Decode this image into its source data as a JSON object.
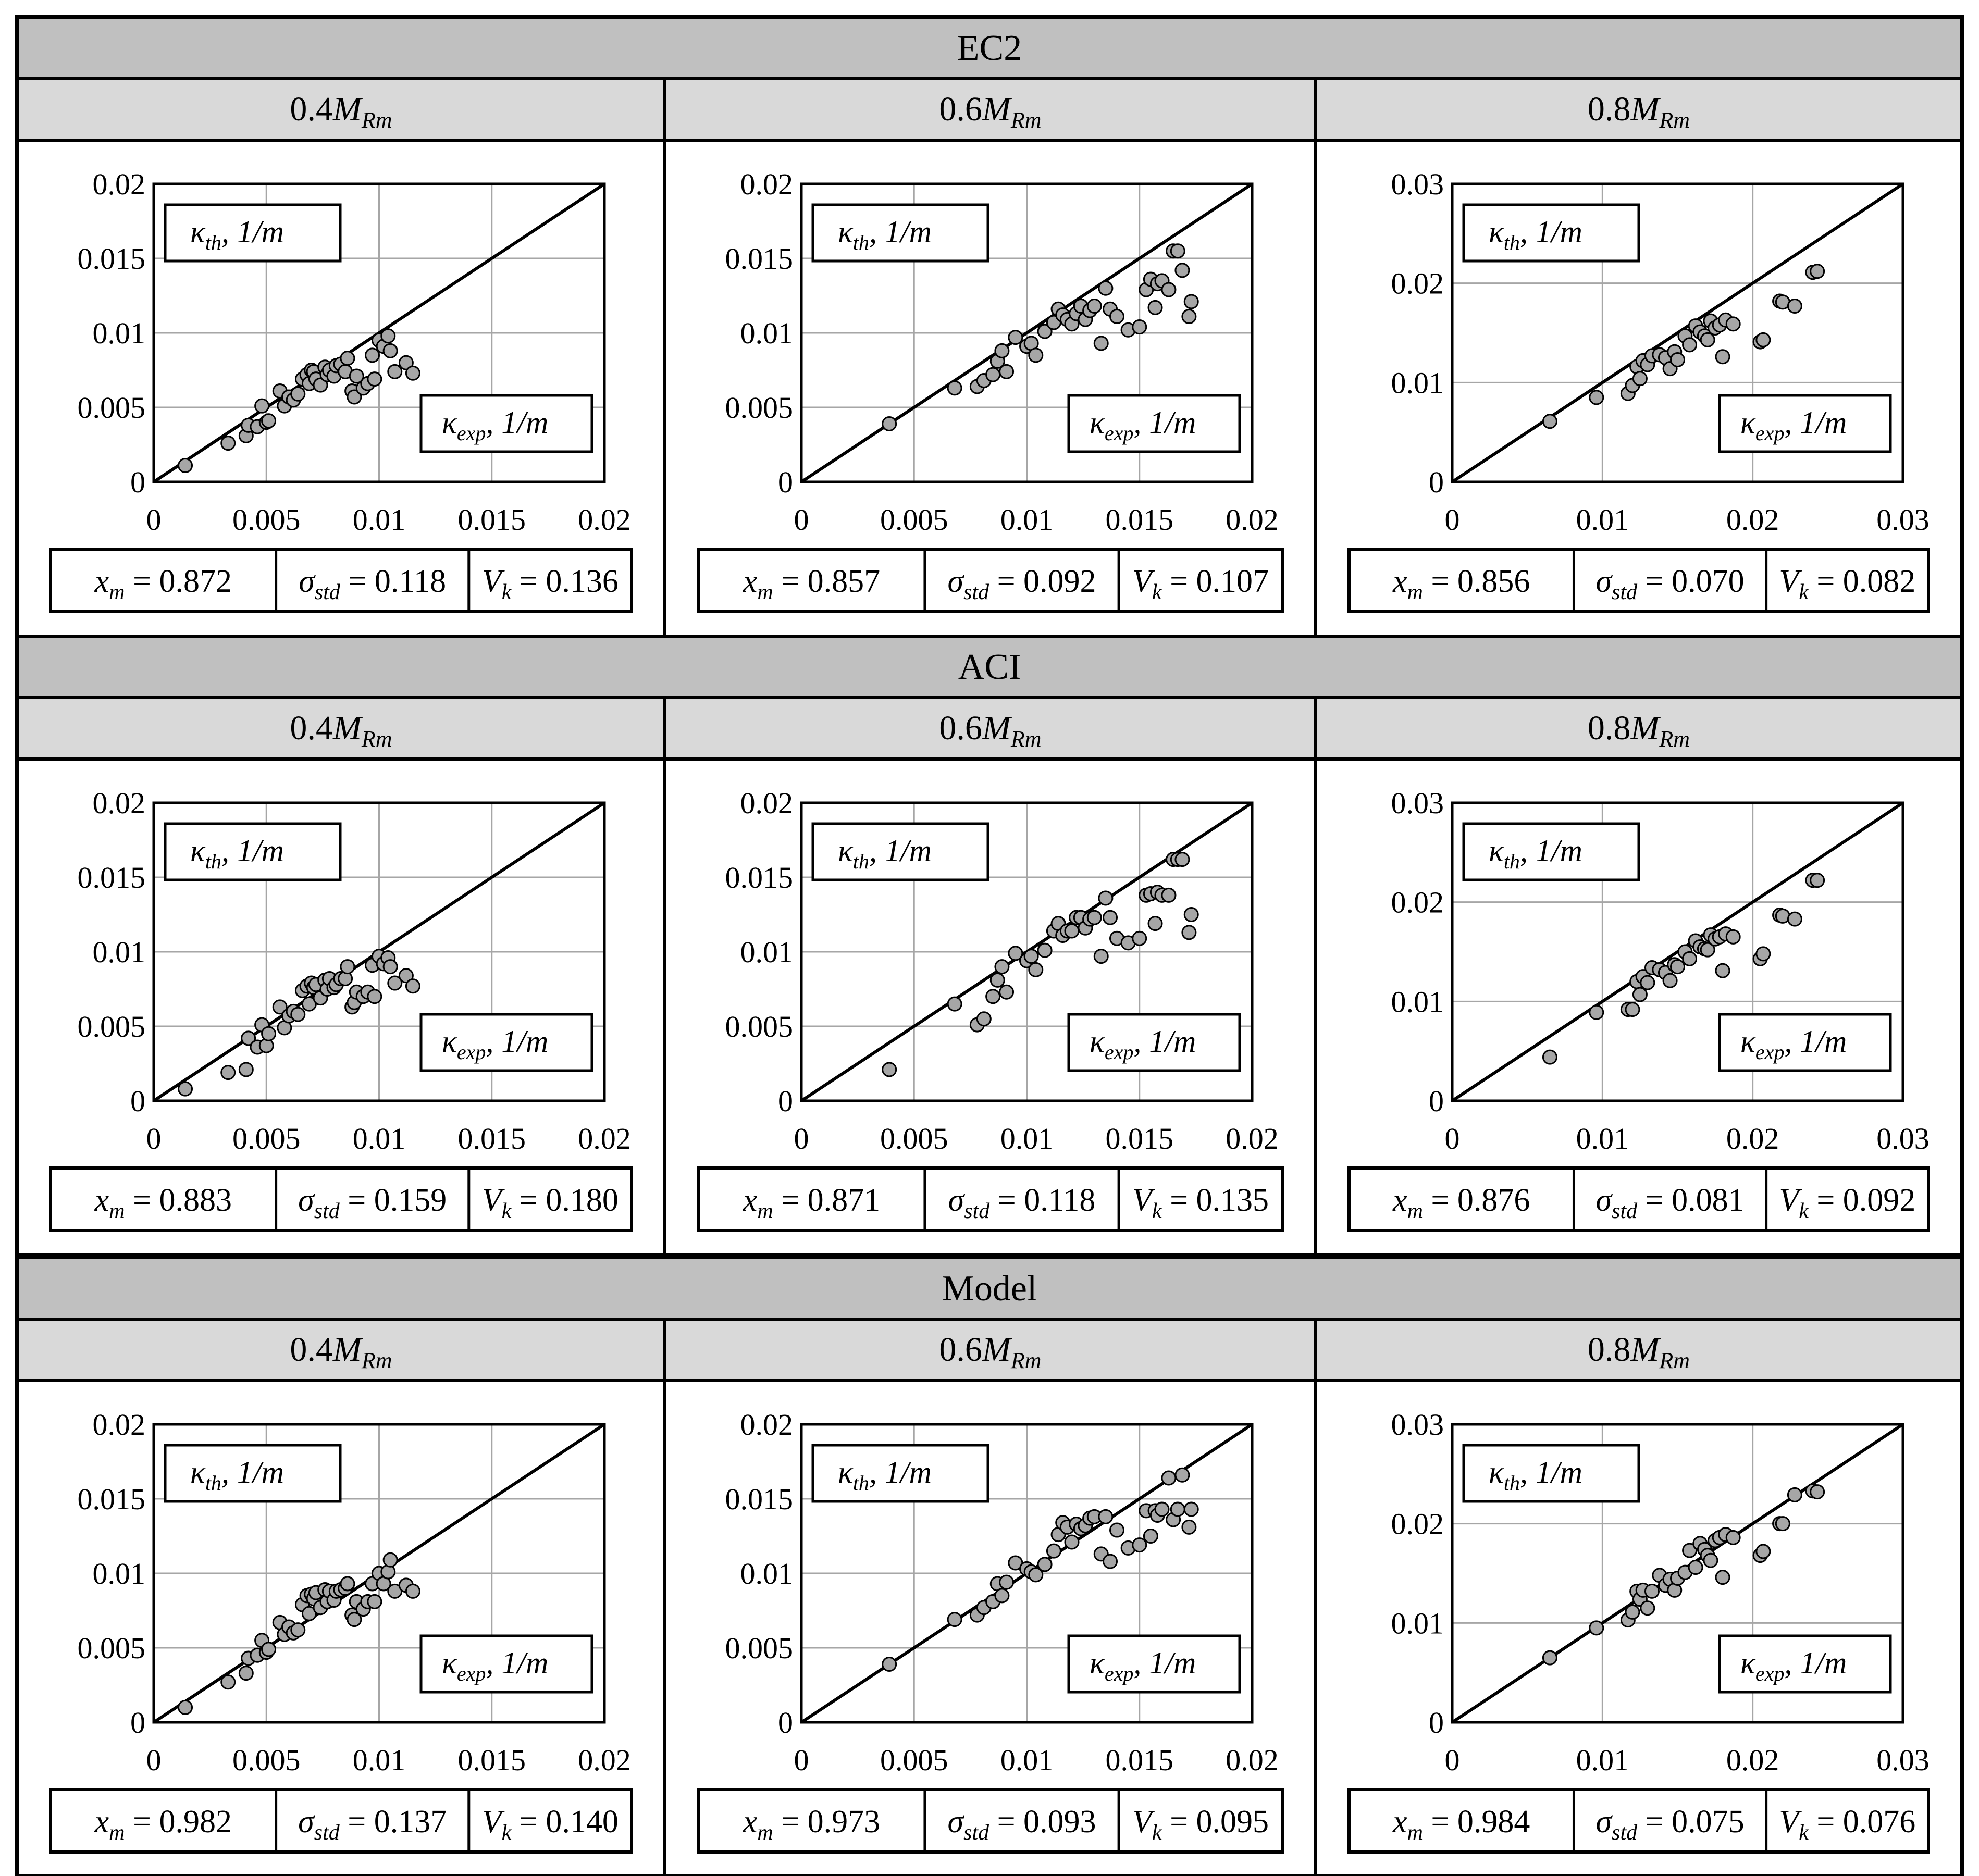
{
  "labels": {
    "y_axis": "κ",
    "y_sub": "th",
    "x_axis": "κ",
    "x_sub": "exp",
    "unit": ", 1/m"
  },
  "colors": {
    "section_header": "#c0c0c0",
    "column_header": "#d9d9d9",
    "marker": "#a6a6a6",
    "grid": "#a6a6a6"
  },
  "sections": [
    {
      "title": "EC2",
      "panels": [
        {
          "header_prefix": "0.4",
          "header_M": "M",
          "header_sub": "Rm",
          "xm": "x",
          "xm_sub": "m",
          "xm_val": " = 0.872",
          "sd": "σ",
          "sd_sub": "std",
          "sd_val": " = 0.118",
          "vk": "V",
          "vk_sub": "k",
          "vk_val": " = 0.136"
        },
        {
          "header_prefix": "0.6",
          "header_M": "M",
          "header_sub": "Rm",
          "xm": "x",
          "xm_sub": "m",
          "xm_val": " = 0.857",
          "sd": "σ",
          "sd_sub": "std",
          "sd_val": " = 0.092",
          "vk": "V",
          "vk_sub": "k",
          "vk_val": " = 0.107"
        },
        {
          "header_prefix": "0.8",
          "header_M": "M",
          "header_sub": "Rm",
          "xm": "x",
          "xm_sub": "m",
          "xm_val": " = 0.856",
          "sd": "σ",
          "sd_sub": "std",
          "sd_val": " = 0.070",
          "vk": "V",
          "vk_sub": "k",
          "vk_val": " = 0.082"
        }
      ]
    },
    {
      "title": "ACI",
      "panels": [
        {
          "header_prefix": "0.4",
          "header_M": "M",
          "header_sub": "Rm",
          "xm": "x",
          "xm_sub": "m",
          "xm_val": " = 0.883",
          "sd": "σ",
          "sd_sub": "std",
          "sd_val": " = 0.159",
          "vk": "V",
          "vk_sub": "k",
          "vk_val": " = 0.180"
        },
        {
          "header_prefix": "0.6",
          "header_M": "M",
          "header_sub": "Rm",
          "xm": "x",
          "xm_sub": "m",
          "xm_val": " = 0.871",
          "sd": "σ",
          "sd_sub": "std",
          "sd_val": " = 0.118",
          "vk": "V",
          "vk_sub": "k",
          "vk_val": " = 0.135"
        },
        {
          "header_prefix": "0.8",
          "header_M": "M",
          "header_sub": "Rm",
          "xm": "x",
          "xm_sub": "m",
          "xm_val": " = 0.876",
          "sd": "σ",
          "sd_sub": "std",
          "sd_val": " = 0.081",
          "vk": "V",
          "vk_sub": "k",
          "vk_val": " = 0.092"
        }
      ]
    },
    {
      "title": "Model",
      "panels": [
        {
          "header_prefix": "0.4",
          "header_M": "M",
          "header_sub": "Rm",
          "xm": "x",
          "xm_sub": "m",
          "xm_val": " = 0.982",
          "sd": "σ",
          "sd_sub": "std",
          "sd_val": " = 0.137",
          "vk": "V",
          "vk_sub": "k",
          "vk_val": " = 0.140"
        },
        {
          "header_prefix": "0.6",
          "header_M": "M",
          "header_sub": "Rm",
          "xm": "x",
          "xm_sub": "m",
          "xm_val": " = 0.973",
          "sd": "σ",
          "sd_sub": "std",
          "sd_val": " = 0.093",
          "vk": "V",
          "vk_sub": "k",
          "vk_val": " = 0.095"
        },
        {
          "header_prefix": "0.8",
          "header_M": "M",
          "header_sub": "Rm",
          "xm": "x",
          "xm_sub": "m",
          "xm_val": " = 0.984",
          "sd": "σ",
          "sd_sub": "std",
          "sd_val": " = 0.075",
          "vk": "V",
          "vk_sub": "k",
          "vk_val": " = 0.076"
        }
      ]
    }
  ],
  "chart_data": [
    {
      "type": "scatter",
      "row": 0,
      "col": 0,
      "xlim": [
        0,
        0.02
      ],
      "ylim": [
        0,
        0.02
      ],
      "ticks": [
        0,
        0.005,
        0.01,
        0.015,
        0.02
      ],
      "tick_labels": [
        "0",
        "0.005",
        "0.01",
        "0.015",
        "0.02"
      ],
      "reference_line": "y = x",
      "x": [
        0.0014,
        0.0033,
        0.0041,
        0.0042,
        0.0046,
        0.0048,
        0.005,
        0.0051,
        0.0056,
        0.0058,
        0.006,
        0.0062,
        0.0064,
        0.0066,
        0.0068,
        0.0069,
        0.007,
        0.0071,
        0.0072,
        0.0074,
        0.0076,
        0.0077,
        0.0078,
        0.008,
        0.0081,
        0.0083,
        0.0085,
        0.0086,
        0.0088,
        0.0089,
        0.009,
        0.0093,
        0.0095,
        0.0097,
        0.0098,
        0.01,
        0.0102,
        0.0104,
        0.0105,
        0.0107,
        0.0112,
        0.0115
      ],
      "y": [
        0.0011,
        0.0026,
        0.0031,
        0.0038,
        0.0037,
        0.0051,
        0.004,
        0.0041,
        0.0061,
        0.0051,
        0.0057,
        0.0055,
        0.0059,
        0.0069,
        0.0072,
        0.0066,
        0.0075,
        0.0074,
        0.0069,
        0.0065,
        0.0077,
        0.0072,
        0.0075,
        0.0071,
        0.0078,
        0.0079,
        0.0074,
        0.0083,
        0.0061,
        0.0057,
        0.0071,
        0.0063,
        0.0066,
        0.0085,
        0.0069,
        0.0095,
        0.0091,
        0.0098,
        0.0088,
        0.0074,
        0.008,
        0.0073
      ]
    },
    {
      "type": "scatter",
      "row": 0,
      "col": 1,
      "xlim": [
        0,
        0.02
      ],
      "ylim": [
        0,
        0.02
      ],
      "ticks": [
        0,
        0.005,
        0.01,
        0.015,
        0.02
      ],
      "tick_labels": [
        "0",
        "0.005",
        "0.01",
        "0.015",
        "0.02"
      ],
      "reference_line": "y = x",
      "x": [
        0.0039,
        0.0068,
        0.0078,
        0.0081,
        0.0085,
        0.0087,
        0.0089,
        0.0091,
        0.0095,
        0.01,
        0.0102,
        0.0104,
        0.0108,
        0.0112,
        0.0114,
        0.0116,
        0.0118,
        0.012,
        0.0122,
        0.0124,
        0.0126,
        0.0128,
        0.013,
        0.0133,
        0.0135,
        0.0137,
        0.014,
        0.0145,
        0.015,
        0.0153,
        0.0155,
        0.0157,
        0.0158,
        0.016,
        0.0163,
        0.0165,
        0.0167,
        0.0169,
        0.0172,
        0.0173
      ],
      "y": [
        0.0039,
        0.0063,
        0.0064,
        0.0068,
        0.0072,
        0.0081,
        0.0088,
        0.0074,
        0.0097,
        0.0091,
        0.0093,
        0.0085,
        0.0101,
        0.0107,
        0.0116,
        0.0112,
        0.0109,
        0.0106,
        0.0113,
        0.0118,
        0.0109,
        0.0115,
        0.0118,
        0.0093,
        0.013,
        0.0116,
        0.0111,
        0.0102,
        0.0104,
        0.0129,
        0.0136,
        0.0117,
        0.0133,
        0.0135,
        0.0129,
        0.0155,
        0.0155,
        0.0142,
        0.0111,
        0.0121
      ]
    },
    {
      "type": "scatter",
      "row": 0,
      "col": 2,
      "xlim": [
        0,
        0.03
      ],
      "ylim": [
        0,
        0.03
      ],
      "ticks": [
        0,
        0.01,
        0.02,
        0.03
      ],
      "tick_labels": [
        "0",
        "0.01",
        "0.02",
        "0.03"
      ],
      "reference_line": "y = x",
      "x": [
        0.0065,
        0.0096,
        0.0117,
        0.012,
        0.0123,
        0.0125,
        0.0127,
        0.013,
        0.0133,
        0.0138,
        0.0142,
        0.0145,
        0.0148,
        0.015,
        0.0155,
        0.0158,
        0.0162,
        0.0165,
        0.0168,
        0.017,
        0.0172,
        0.0175,
        0.0178,
        0.018,
        0.0182,
        0.0187,
        0.0205,
        0.0207,
        0.0218,
        0.022,
        0.0228,
        0.024,
        0.0243
      ],
      "y": [
        0.0061,
        0.0085,
        0.0089,
        0.0097,
        0.0116,
        0.0104,
        0.0122,
        0.0118,
        0.0127,
        0.0128,
        0.0125,
        0.0114,
        0.0131,
        0.0123,
        0.0147,
        0.0138,
        0.0157,
        0.0151,
        0.0147,
        0.0143,
        0.0162,
        0.0155,
        0.0158,
        0.0126,
        0.0163,
        0.0159,
        0.0141,
        0.0143,
        0.0182,
        0.0181,
        0.0177,
        0.0211,
        0.0212
      ]
    },
    {
      "type": "scatter",
      "row": 1,
      "col": 0,
      "xlim": [
        0,
        0.02
      ],
      "ylim": [
        0,
        0.02
      ],
      "ticks": [
        0,
        0.005,
        0.01,
        0.015,
        0.02
      ],
      "tick_labels": [
        "0",
        "0.005",
        "0.01",
        "0.015",
        "0.02"
      ],
      "reference_line": "y = x",
      "x": [
        0.0014,
        0.0033,
        0.0041,
        0.0042,
        0.0046,
        0.0048,
        0.005,
        0.0051,
        0.0056,
        0.0058,
        0.006,
        0.0062,
        0.0064,
        0.0066,
        0.0068,
        0.0069,
        0.007,
        0.0071,
        0.0072,
        0.0074,
        0.0076,
        0.0077,
        0.0078,
        0.008,
        0.0081,
        0.0083,
        0.0085,
        0.0086,
        0.0088,
        0.0089,
        0.009,
        0.0093,
        0.0095,
        0.0097,
        0.0098,
        0.01,
        0.0102,
        0.0104,
        0.0105,
        0.0107,
        0.0112,
        0.0115
      ],
      "y": [
        0.0008,
        0.0019,
        0.0021,
        0.0042,
        0.0036,
        0.0051,
        0.0037,
        0.0045,
        0.0063,
        0.0049,
        0.0057,
        0.006,
        0.0058,
        0.0074,
        0.0077,
        0.0065,
        0.0079,
        0.0076,
        0.0078,
        0.0069,
        0.0081,
        0.0075,
        0.0082,
        0.0076,
        0.0078,
        0.0082,
        0.0082,
        0.009,
        0.0063,
        0.0066,
        0.0073,
        0.007,
        0.0073,
        0.0091,
        0.007,
        0.0097,
        0.0092,
        0.0096,
        0.009,
        0.0079,
        0.0084,
        0.0077
      ]
    },
    {
      "type": "scatter",
      "row": 1,
      "col": 1,
      "xlim": [
        0,
        0.02
      ],
      "ylim": [
        0,
        0.02
      ],
      "ticks": [
        0,
        0.005,
        0.01,
        0.015,
        0.02
      ],
      "tick_labels": [
        "0",
        "0.005",
        "0.01",
        "0.015",
        "0.02"
      ],
      "reference_line": "y = x",
      "x": [
        0.0039,
        0.0068,
        0.0078,
        0.0081,
        0.0085,
        0.0087,
        0.0089,
        0.0091,
        0.0095,
        0.01,
        0.0102,
        0.0104,
        0.0108,
        0.0112,
        0.0114,
        0.0116,
        0.0118,
        0.012,
        0.0122,
        0.0124,
        0.0126,
        0.0128,
        0.013,
        0.0133,
        0.0135,
        0.0137,
        0.014,
        0.0145,
        0.015,
        0.0153,
        0.0155,
        0.0157,
        0.0158,
        0.016,
        0.0163,
        0.0165,
        0.0167,
        0.0169,
        0.0172,
        0.0173
      ],
      "y": [
        0.0021,
        0.0065,
        0.0051,
        0.0055,
        0.007,
        0.0081,
        0.009,
        0.0073,
        0.0099,
        0.0094,
        0.0097,
        0.0088,
        0.0101,
        0.0114,
        0.0119,
        0.0111,
        0.0114,
        0.0114,
        0.0123,
        0.0123,
        0.0116,
        0.0122,
        0.0123,
        0.0097,
        0.0136,
        0.0123,
        0.0109,
        0.0106,
        0.0109,
        0.0138,
        0.0139,
        0.0119,
        0.014,
        0.0138,
        0.0138,
        0.0162,
        0.0162,
        0.0162,
        0.0113,
        0.0125
      ]
    },
    {
      "type": "scatter",
      "row": 1,
      "col": 2,
      "xlim": [
        0,
        0.03
      ],
      "ylim": [
        0,
        0.03
      ],
      "ticks": [
        0,
        0.01,
        0.02,
        0.03
      ],
      "tick_labels": [
        "0",
        "0.01",
        "0.02",
        "0.03"
      ],
      "reference_line": "y = x",
      "x": [
        0.0065,
        0.0096,
        0.0117,
        0.012,
        0.0123,
        0.0125,
        0.0127,
        0.013,
        0.0133,
        0.0138,
        0.0142,
        0.0145,
        0.0148,
        0.015,
        0.0155,
        0.0158,
        0.0162,
        0.0165,
        0.0168,
        0.017,
        0.0172,
        0.0175,
        0.0178,
        0.018,
        0.0182,
        0.0187,
        0.0205,
        0.0207,
        0.0218,
        0.022,
        0.0228,
        0.024,
        0.0243
      ],
      "y": [
        0.0044,
        0.0089,
        0.0092,
        0.0092,
        0.012,
        0.0107,
        0.0125,
        0.0119,
        0.0134,
        0.0132,
        0.0129,
        0.0121,
        0.0137,
        0.0135,
        0.015,
        0.0143,
        0.0161,
        0.0155,
        0.0153,
        0.0152,
        0.0167,
        0.0163,
        0.0165,
        0.0131,
        0.0168,
        0.0165,
        0.0143,
        0.0148,
        0.0187,
        0.0186,
        0.0183,
        0.0222,
        0.0222
      ]
    },
    {
      "type": "scatter",
      "row": 2,
      "col": 0,
      "xlim": [
        0,
        0.02
      ],
      "ylim": [
        0,
        0.02
      ],
      "ticks": [
        0,
        0.005,
        0.01,
        0.015,
        0.02
      ],
      "tick_labels": [
        "0",
        "0.005",
        "0.01",
        "0.015",
        "0.02"
      ],
      "reference_line": "y = x",
      "x": [
        0.0014,
        0.0033,
        0.0041,
        0.0042,
        0.0046,
        0.0048,
        0.005,
        0.0051,
        0.0056,
        0.0058,
        0.006,
        0.0062,
        0.0064,
        0.0066,
        0.0068,
        0.0069,
        0.007,
        0.0071,
        0.0072,
        0.0074,
        0.0076,
        0.0077,
        0.0078,
        0.008,
        0.0081,
        0.0083,
        0.0085,
        0.0086,
        0.0088,
        0.0089,
        0.009,
        0.0093,
        0.0095,
        0.0097,
        0.0098,
        0.01,
        0.0102,
        0.0104,
        0.0105,
        0.0107,
        0.0112,
        0.0115
      ],
      "y": [
        0.001,
        0.0027,
        0.0033,
        0.0043,
        0.0045,
        0.0055,
        0.0047,
        0.0049,
        0.0067,
        0.0059,
        0.0064,
        0.006,
        0.0062,
        0.0079,
        0.0085,
        0.0073,
        0.0086,
        0.0083,
        0.0087,
        0.0077,
        0.0089,
        0.0081,
        0.0088,
        0.0082,
        0.0088,
        0.0089,
        0.009,
        0.0093,
        0.0072,
        0.0069,
        0.0081,
        0.0076,
        0.0081,
        0.0093,
        0.0081,
        0.01,
        0.0093,
        0.0101,
        0.0109,
        0.0088,
        0.0092,
        0.0088
      ]
    },
    {
      "type": "scatter",
      "row": 2,
      "col": 1,
      "xlim": [
        0,
        0.02
      ],
      "ylim": [
        0,
        0.02
      ],
      "ticks": [
        0,
        0.005,
        0.01,
        0.015,
        0.02
      ],
      "tick_labels": [
        "0",
        "0.005",
        "0.01",
        "0.015",
        "0.02"
      ],
      "reference_line": "y = x",
      "x": [
        0.0039,
        0.0068,
        0.0078,
        0.0081,
        0.0085,
        0.0087,
        0.0089,
        0.0091,
        0.0095,
        0.01,
        0.0102,
        0.0104,
        0.0108,
        0.0112,
        0.0114,
        0.0116,
        0.0118,
        0.012,
        0.0122,
        0.0124,
        0.0126,
        0.0128,
        0.013,
        0.0133,
        0.0135,
        0.0137,
        0.014,
        0.0145,
        0.015,
        0.0153,
        0.0155,
        0.0157,
        0.0158,
        0.016,
        0.0163,
        0.0165,
        0.0167,
        0.0169,
        0.0172,
        0.0173
      ],
      "y": [
        0.0039,
        0.0069,
        0.0072,
        0.0077,
        0.0081,
        0.0093,
        0.0085,
        0.0094,
        0.0107,
        0.0103,
        0.0101,
        0.0099,
        0.0106,
        0.0115,
        0.0126,
        0.0134,
        0.0131,
        0.0121,
        0.0133,
        0.013,
        0.0132,
        0.0137,
        0.0138,
        0.0113,
        0.0138,
        0.0108,
        0.0129,
        0.0117,
        0.0119,
        0.0142,
        0.0125,
        0.0142,
        0.0139,
        0.0143,
        0.0164,
        0.0136,
        0.0143,
        0.0166,
        0.0131,
        0.0143
      ]
    },
    {
      "type": "scatter",
      "row": 2,
      "col": 2,
      "xlim": [
        0,
        0.03
      ],
      "ylim": [
        0,
        0.03
      ],
      "ticks": [
        0,
        0.01,
        0.02,
        0.03
      ],
      "tick_labels": [
        "0",
        "0.01",
        "0.02",
        "0.03"
      ],
      "reference_line": "y = x",
      "x": [
        0.0065,
        0.0096,
        0.0117,
        0.012,
        0.0123,
        0.0125,
        0.0127,
        0.013,
        0.0133,
        0.0138,
        0.0142,
        0.0145,
        0.0148,
        0.015,
        0.0155,
        0.0158,
        0.0162,
        0.0165,
        0.0168,
        0.017,
        0.0172,
        0.0175,
        0.0178,
        0.018,
        0.0182,
        0.0187,
        0.0205,
        0.0207,
        0.0218,
        0.022,
        0.0228,
        0.024,
        0.0243
      ],
      "y": [
        0.0065,
        0.0095,
        0.0103,
        0.0111,
        0.0132,
        0.0124,
        0.0133,
        0.0115,
        0.0132,
        0.0148,
        0.0138,
        0.0144,
        0.0133,
        0.0145,
        0.0151,
        0.0173,
        0.0156,
        0.018,
        0.0174,
        0.0168,
        0.0163,
        0.0183,
        0.0186,
        0.0146,
        0.0189,
        0.0186,
        0.0168,
        0.0172,
        0.02,
        0.02,
        0.0229,
        0.0233,
        0.0232
      ]
    }
  ]
}
